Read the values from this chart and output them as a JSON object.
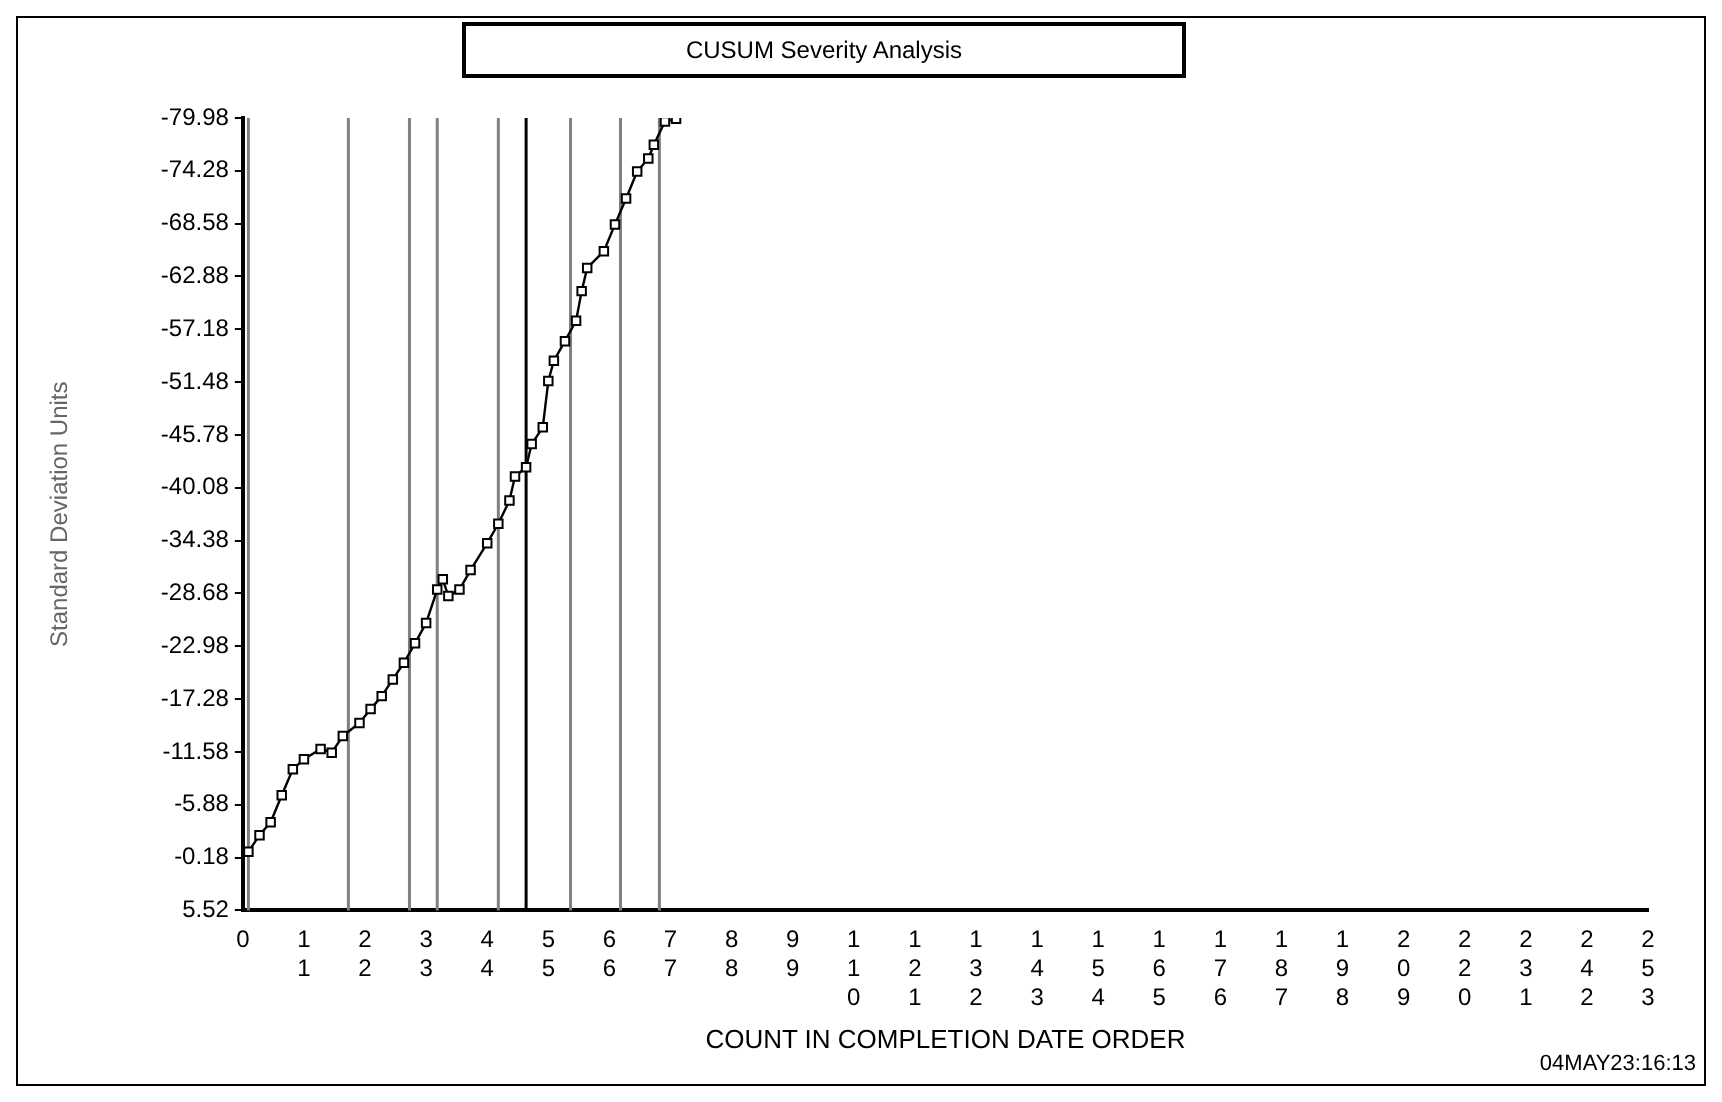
{
  "chart_data": {
    "type": "line",
    "title": "CUSUM Severity Analysis",
    "xlabel": "COUNT IN COMPLETION DATE ORDER",
    "ylabel": "Standard Deviation Units",
    "annotations": [
      "04MAY23:16:13"
    ],
    "series": [
      {
        "color": "#000000",
        "x": [
          1,
          3,
          5,
          7,
          9,
          11,
          14,
          16,
          18,
          21,
          23,
          25,
          27,
          29,
          31,
          33,
          35,
          36,
          37,
          39,
          41,
          44,
          46,
          48,
          49,
          51,
          52,
          54,
          55,
          56,
          58,
          60,
          61,
          62,
          65,
          67,
          69,
          71,
          73,
          74,
          76,
          78
        ],
        "values": [
          -0.8,
          -2.6,
          -4.0,
          -6.9,
          -9.7,
          -10.8,
          -11.9,
          -11.5,
          -13.3,
          -14.7,
          -16.2,
          -17.6,
          -19.4,
          -21.2,
          -23.3,
          -25.5,
          -29.1,
          -30.2,
          -28.4,
          -29.1,
          -31.2,
          -34.1,
          -36.2,
          -38.7,
          -41.3,
          -42.3,
          -44.8,
          -46.6,
          -51.6,
          -53.8,
          -55.9,
          -58.1,
          -61.3,
          -63.8,
          -65.6,
          -68.5,
          -71.3,
          -74.2,
          -75.6,
          -77.1,
          -79.6,
          -79.9
        ]
      }
    ],
    "marker": "square",
    "line_style": "solid",
    "grid": false,
    "legend": false,
    "xlim": [
      0,
      253
    ],
    "xticks": [
      0,
      11,
      22,
      33,
      44,
      55,
      66,
      77,
      88,
      99,
      110,
      121,
      132,
      143,
      154,
      165,
      176,
      187,
      198,
      209,
      220,
      231,
      242,
      253
    ],
    "ylim": [
      5.52,
      -79.98
    ],
    "yticks": [
      5.52,
      -0.18,
      -5.88,
      -11.58,
      -17.28,
      -22.98,
      -28.68,
      -34.38,
      -40.08,
      -45.78,
      -51.48,
      -57.18,
      -62.88,
      -68.58,
      -74.28,
      -79.98
    ],
    "ref_lines": [
      {
        "axis": "x",
        "value": 1,
        "color": "#808080"
      },
      {
        "axis": "x",
        "value": 19,
        "color": "#808080"
      },
      {
        "axis": "x",
        "value": 30,
        "color": "#808080"
      },
      {
        "axis": "x",
        "value": 35,
        "color": "#808080"
      },
      {
        "axis": "x",
        "value": 46,
        "color": "#808080"
      },
      {
        "axis": "x",
        "value": 51,
        "color": "#000000"
      },
      {
        "axis": "x",
        "value": 59,
        "color": "#808080"
      },
      {
        "axis": "x",
        "value": 68,
        "color": "#808080"
      },
      {
        "axis": "x",
        "value": 75,
        "color": "#808080"
      }
    ]
  }
}
